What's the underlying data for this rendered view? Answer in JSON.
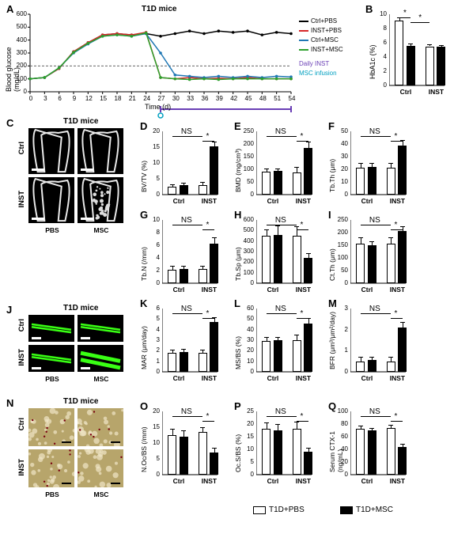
{
  "panelA": {
    "label": "A",
    "title": "T1D mice",
    "y_label": "Blood glucose (mg/dL)",
    "x_label": "Time (d)",
    "y_ticks": [
      0,
      100,
      200,
      300,
      400,
      500,
      600
    ],
    "x_ticks": [
      0,
      3,
      6,
      9,
      12,
      15,
      18,
      21,
      24,
      27,
      30,
      33,
      36,
      39,
      42,
      45,
      48,
      51,
      54
    ],
    "legend": [
      {
        "label": "Ctrl+PBS",
        "color": "#000000"
      },
      {
        "label": "INST+PBS",
        "color": "#d62728"
      },
      {
        "label": "Ctrl+MSC",
        "color": "#1f77b4"
      },
      {
        "label": "INST+MSC",
        "color": "#2ca02c"
      }
    ],
    "annot_daily": {
      "text": "Daily INST",
      "color": "#6a3fb5"
    },
    "annot_msc": {
      "text": "MSC infusion",
      "color": "#00a0c0"
    },
    "series": {
      "CtrlPBS": {
        "color": "#000000",
        "y": [
          100,
          110,
          180,
          310,
          380,
          440,
          450,
          440,
          450,
          430,
          450,
          470,
          450,
          470,
          460,
          470,
          440,
          460,
          450
        ]
      },
      "INSTPBS": {
        "color": "#d62728",
        "y": [
          100,
          110,
          180,
          310,
          380,
          440,
          450,
          440,
          460,
          110,
          100,
          110,
          100,
          105,
          100,
          110,
          100,
          100,
          100
        ]
      },
      "CtrlMSC": {
        "color": "#1f77b4",
        "y": [
          100,
          110,
          185,
          300,
          370,
          430,
          440,
          430,
          450,
          300,
          130,
          120,
          110,
          120,
          110,
          120,
          110,
          120,
          115
        ]
      },
      "INSTMSC": {
        "color": "#2ca02c",
        "y": [
          100,
          110,
          185,
          305,
          375,
          430,
          440,
          430,
          455,
          110,
          100,
          95,
          100,
          95,
          100,
          100,
          100,
          100,
          100
        ]
      }
    },
    "guide_y": 200
  },
  "panelB": {
    "label": "B",
    "y_label": "HbA1c (%)",
    "y_max": 10,
    "y_ticks": [
      0,
      2,
      4,
      6,
      8,
      10
    ],
    "groups": [
      "Ctrl",
      "INST"
    ],
    "bars": [
      {
        "fill": "white",
        "v": 9.1,
        "e": 0.5
      },
      {
        "fill": "black",
        "v": 5.6,
        "e": 0.3
      },
      {
        "fill": "white",
        "v": 5.5,
        "e": 0.3
      },
      {
        "fill": "black",
        "v": 5.4,
        "e": 0.3
      }
    ],
    "sig": [
      [
        "*"
      ],
      [
        "*"
      ]
    ]
  },
  "panelC": {
    "label": "C",
    "title": "T1D mice",
    "rows": [
      "Ctrl",
      "INST"
    ],
    "cols": [
      "PBS",
      "MSC"
    ]
  },
  "panelD": {
    "label": "D",
    "y_label": "BV/TV (%)",
    "y_max": 20,
    "y_ticks": [
      0,
      5,
      10,
      15,
      20
    ],
    "groups": [
      "Ctrl",
      "INST"
    ],
    "bars": [
      {
        "fill": "white",
        "v": 2.6,
        "e": 0.6
      },
      {
        "fill": "black",
        "v": 3.0,
        "e": 0.7
      },
      {
        "fill": "white",
        "v": 3.0,
        "e": 1.1
      },
      {
        "fill": "black",
        "v": 15.2,
        "e": 1.5
      }
    ],
    "sig_ns": "NS",
    "sig_star": "*"
  },
  "panelE": {
    "label": "E",
    "y_label": "BMD (mg/cm³)",
    "y_max": 250,
    "y_ticks": [
      0,
      50,
      100,
      150,
      200,
      250
    ],
    "groups": [
      "Ctrl",
      "INST"
    ],
    "bars": [
      {
        "fill": "white",
        "v": 90,
        "e": 12
      },
      {
        "fill": "black",
        "v": 94,
        "e": 8
      },
      {
        "fill": "white",
        "v": 88,
        "e": 20
      },
      {
        "fill": "black",
        "v": 185,
        "e": 25
      }
    ],
    "sig_ns": "NS",
    "sig_star": "*"
  },
  "panelF": {
    "label": "F",
    "y_label": "Tb.Th (μm)",
    "y_max": 50,
    "y_ticks": [
      0,
      10,
      20,
      30,
      40,
      50
    ],
    "groups": [
      "Ctrl",
      "INST"
    ],
    "bars": [
      {
        "fill": "white",
        "v": 21,
        "e": 4
      },
      {
        "fill": "black",
        "v": 22,
        "e": 3
      },
      {
        "fill": "white",
        "v": 21,
        "e": 4
      },
      {
        "fill": "black",
        "v": 39,
        "e": 4
      }
    ],
    "sig_ns": "NS",
    "sig_star": "*"
  },
  "panelG": {
    "label": "G",
    "y_label": "Tb.N (/mm)",
    "y_max": 10,
    "y_ticks": [
      0,
      2,
      4,
      6,
      8,
      10
    ],
    "groups": [
      "Ctrl",
      "INST"
    ],
    "bars": [
      {
        "fill": "white",
        "v": 2.1,
        "e": 0.6
      },
      {
        "fill": "black",
        "v": 2.3,
        "e": 0.5
      },
      {
        "fill": "white",
        "v": 2.2,
        "e": 0.6
      },
      {
        "fill": "black",
        "v": 6.3,
        "e": 1.0
      }
    ],
    "sig_ns": "NS",
    "sig_star": "*"
  },
  "panelH": {
    "label": "H",
    "y_label": "Tb.Sp (μm)",
    "y_max": 600,
    "y_ticks": [
      0,
      100,
      200,
      300,
      400,
      500,
      600
    ],
    "groups": [
      "Ctrl",
      "INST"
    ],
    "bars": [
      {
        "fill": "white",
        "v": 450,
        "e": 60
      },
      {
        "fill": "black",
        "v": 460,
        "e": 90
      },
      {
        "fill": "white",
        "v": 450,
        "e": 90
      },
      {
        "fill": "black",
        "v": 240,
        "e": 45
      }
    ],
    "sig_ns": "NS",
    "sig_star": "*"
  },
  "panelI": {
    "label": "I",
    "y_label": "Ct.Th (μm)",
    "y_max": 250,
    "y_ticks": [
      0,
      50,
      100,
      150,
      200,
      250
    ],
    "groups": [
      "Ctrl",
      "INST"
    ],
    "bars": [
      {
        "fill": "white",
        "v": 155,
        "e": 25
      },
      {
        "fill": "black",
        "v": 150,
        "e": 15
      },
      {
        "fill": "white",
        "v": 155,
        "e": 25
      },
      {
        "fill": "black",
        "v": 205,
        "e": 20
      }
    ],
    "sig_ns": "NS",
    "sig_star": "*"
  },
  "panelJ": {
    "label": "J",
    "title": "T1D mice",
    "rows": [
      "Ctrl",
      "INST"
    ],
    "cols": [
      "PBS",
      "MSC"
    ]
  },
  "panelK": {
    "label": "K",
    "y_label": "MAR (μm/day)",
    "y_max": 6,
    "y_ticks": [
      0,
      1,
      2,
      3,
      4,
      5,
      6
    ],
    "groups": [
      "Ctrl",
      "INST"
    ],
    "bars": [
      {
        "fill": "white",
        "v": 1.8,
        "e": 0.3
      },
      {
        "fill": "black",
        "v": 1.9,
        "e": 0.3
      },
      {
        "fill": "white",
        "v": 1.8,
        "e": 0.3
      },
      {
        "fill": "black",
        "v": 4.7,
        "e": 0.5
      }
    ],
    "sig_ns": "NS",
    "sig_star": "*"
  },
  "panelL": {
    "label": "L",
    "y_label": "MS/BS (%)",
    "y_max": 60,
    "y_ticks": [
      0,
      10,
      20,
      30,
      40,
      50,
      60
    ],
    "groups": [
      "Ctrl",
      "INST"
    ],
    "bars": [
      {
        "fill": "white",
        "v": 29,
        "e": 4
      },
      {
        "fill": "black",
        "v": 30,
        "e": 3
      },
      {
        "fill": "white",
        "v": 30,
        "e": 5
      },
      {
        "fill": "black",
        "v": 46,
        "e": 5
      }
    ],
    "sig_ns": "NS",
    "sig_star": "*"
  },
  "panelM": {
    "label": "M",
    "y_label": "BFR (μm³/μm²/day)",
    "y_max": 3,
    "y_ticks": [
      0,
      1,
      2,
      3
    ],
    "groups": [
      "Ctrl",
      "INST"
    ],
    "bars": [
      {
        "fill": "white",
        "v": 0.5,
        "e": 0.2
      },
      {
        "fill": "black",
        "v": 0.55,
        "e": 0.15
      },
      {
        "fill": "white",
        "v": 0.5,
        "e": 0.2
      },
      {
        "fill": "black",
        "v": 2.1,
        "e": 0.25
      }
    ],
    "sig_ns": "NS",
    "sig_star": "*"
  },
  "panelN": {
    "label": "N",
    "title": "T1D mice",
    "rows": [
      "Ctrl",
      "INST"
    ],
    "cols": [
      "PBS",
      "MSC"
    ]
  },
  "panelO": {
    "label": "O",
    "y_label": "N.Oc/BS (/mm)",
    "y_max": 20,
    "y_ticks": [
      0,
      5,
      10,
      15,
      20
    ],
    "groups": [
      "Ctrl",
      "INST"
    ],
    "bars": [
      {
        "fill": "white",
        "v": 12.5,
        "e": 2.0
      },
      {
        "fill": "black",
        "v": 12.0,
        "e": 2.0
      },
      {
        "fill": "white",
        "v": 13.5,
        "e": 1.5
      },
      {
        "fill": "black",
        "v": 7.0,
        "e": 1.5
      }
    ],
    "sig_ns": "NS",
    "sig_star": "*"
  },
  "panelP": {
    "label": "P",
    "y_label": "Oc.S/BS (%)",
    "y_max": 25,
    "y_ticks": [
      0,
      5,
      10,
      15,
      20,
      25
    ],
    "groups": [
      "Ctrl",
      "INST"
    ],
    "bars": [
      {
        "fill": "white",
        "v": 18,
        "e": 2.5
      },
      {
        "fill": "black",
        "v": 17.5,
        "e": 2.5
      },
      {
        "fill": "white",
        "v": 18,
        "e": 3.0
      },
      {
        "fill": "black",
        "v": 9,
        "e": 1.5
      }
    ],
    "sig_ns": "NS",
    "sig_star": "*"
  },
  "panelQ": {
    "label": "Q",
    "y_label": "Serum CTX-1 (ng/mL)",
    "y_max": 100,
    "y_ticks": [
      0,
      20,
      40,
      60,
      80,
      100
    ],
    "groups": [
      "Ctrl",
      "INST"
    ],
    "bars": [
      {
        "fill": "white",
        "v": 72,
        "e": 5
      },
      {
        "fill": "black",
        "v": 70,
        "e": 4
      },
      {
        "fill": "white",
        "v": 74,
        "e": 5
      },
      {
        "fill": "black",
        "v": 44,
        "e": 5
      }
    ],
    "sig_ns": "NS",
    "sig_star": "*"
  },
  "bottom_legend": [
    {
      "fill": "white",
      "label": "T1D+PBS"
    },
    {
      "fill": "black",
      "label": "T1D+MSC"
    }
  ]
}
